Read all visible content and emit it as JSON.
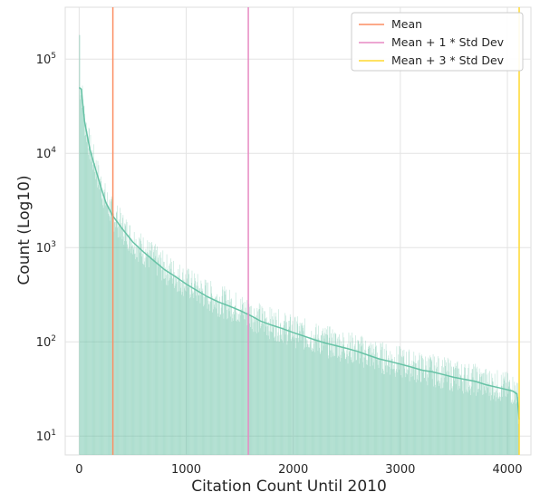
{
  "chart_data": {
    "type": "histogram",
    "xlabel": "Citation Count Until 2010",
    "ylabel": "Count (Log10)",
    "xlim": [
      -130,
      4220
    ],
    "ylim_exponent": [
      0.8,
      5.55
    ],
    "yscale": "log",
    "grid": true,
    "legend_placement": "top-right",
    "x_ticks": [
      {
        "value": 0,
        "label": "0"
      },
      {
        "value": 1000,
        "label": "1000"
      },
      {
        "value": 2000,
        "label": "2000"
      },
      {
        "value": 3000,
        "label": "3000"
      },
      {
        "value": 4000,
        "label": "4000"
      }
    ],
    "y_ticks": [
      {
        "exp": 1,
        "base": "10",
        "sup": "1"
      },
      {
        "exp": 2,
        "base": "10",
        "sup": "2"
      },
      {
        "exp": 3,
        "base": "10",
        "sup": "3"
      },
      {
        "exp": 4,
        "base": "10",
        "sup": "4"
      },
      {
        "exp": 5,
        "base": "10",
        "sup": "5"
      }
    ],
    "histogram": {
      "color": "#66c2a5",
      "x_max": 4110,
      "kde": [
        [
          0,
          50000
        ],
        [
          20,
          48000
        ],
        [
          50,
          22000
        ],
        [
          100,
          11000
        ],
        [
          150,
          7000
        ],
        [
          200,
          4500
        ],
        [
          250,
          3000
        ],
        [
          310,
          2200
        ],
        [
          400,
          1600
        ],
        [
          500,
          1150
        ],
        [
          600,
          900
        ],
        [
          700,
          720
        ],
        [
          800,
          580
        ],
        [
          900,
          490
        ],
        [
          1000,
          410
        ],
        [
          1100,
          350
        ],
        [
          1200,
          300
        ],
        [
          1300,
          265
        ],
        [
          1400,
          240
        ],
        [
          1500,
          215
        ],
        [
          1600,
          190
        ],
        [
          1700,
          165
        ],
        [
          1800,
          150
        ],
        [
          1900,
          138
        ],
        [
          2000,
          125
        ],
        [
          2100,
          115
        ],
        [
          2200,
          105
        ],
        [
          2300,
          97
        ],
        [
          2400,
          91
        ],
        [
          2500,
          85
        ],
        [
          2600,
          79
        ],
        [
          2700,
          72
        ],
        [
          2800,
          66
        ],
        [
          2900,
          62
        ],
        [
          3000,
          58
        ],
        [
          3100,
          54
        ],
        [
          3200,
          50
        ],
        [
          3300,
          48
        ],
        [
          3400,
          45
        ],
        [
          3500,
          42
        ],
        [
          3600,
          40
        ],
        [
          3700,
          38
        ],
        [
          3800,
          35
        ],
        [
          3900,
          33
        ],
        [
          4000,
          31
        ],
        [
          4050,
          30
        ],
        [
          4090,
          28
        ],
        [
          4110,
          15
        ]
      ]
    },
    "vlines": [
      {
        "name": "Mean",
        "x": 315,
        "color": "#fc8d62"
      },
      {
        "name": "Mean + 1 * Std Dev",
        "x": 1580,
        "color": "#e78ac3"
      },
      {
        "name": "Mean + 3 * Std Dev",
        "x": 4110,
        "color": "#ffd92f"
      }
    ]
  }
}
